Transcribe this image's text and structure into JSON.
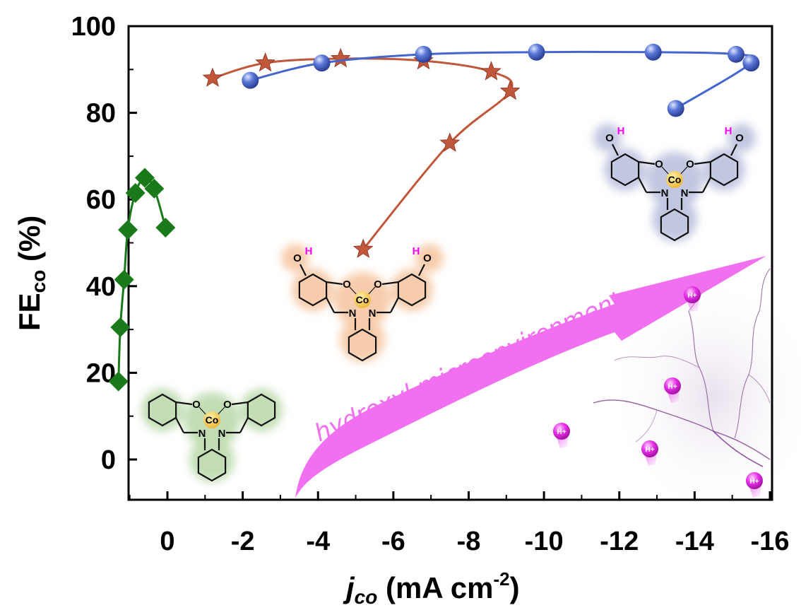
{
  "chart_data": {
    "type": "scatter",
    "title": "",
    "xlabel_main": "j",
    "xlabel_sub": "co",
    "xlabel_units": " (mA cm",
    "xlabel_exp": "-2",
    "xlabel_close": ")",
    "ylabel_main": "FE",
    "ylabel_sub": "co",
    "ylabel_units": " (%)",
    "xlim": [
      1,
      -16
    ],
    "ylim": [
      -10,
      100
    ],
    "x_ticks": [
      0,
      -2,
      -4,
      -6,
      -8,
      -10,
      -12,
      -14,
      -16
    ],
    "x_tick_labels": [
      "0",
      "-2",
      "-4",
      "-6",
      "-8",
      "-10",
      "-12",
      "-14",
      "-16"
    ],
    "y_ticks": [
      0,
      20,
      40,
      60,
      80,
      100
    ],
    "y_tick_labels": [
      "0",
      "20",
      "40",
      "60",
      "80",
      "100"
    ],
    "series": [
      {
        "marker": "diamond",
        "color": "#1a7a1a",
        "x": [
          0.05,
          0.35,
          0.6,
          0.85,
          1.05,
          1.15,
          1.25,
          1.3
        ],
        "y": [
          53.5,
          62.5,
          65,
          61.5,
          53,
          41.5,
          30.5,
          18
        ]
      },
      {
        "marker": "star",
        "color": "#c0563a",
        "x": [
          -1.2,
          -2.6,
          -4.6,
          -6.8,
          -8.6,
          -9.1,
          -7.5,
          -5.2
        ],
        "y": [
          88,
          91.5,
          92.5,
          92,
          89.5,
          85,
          73,
          48.5
        ]
      },
      {
        "marker": "sphere",
        "color": "#4466cc",
        "x": [
          -2.2,
          -4.1,
          -6.8,
          -9.8,
          -12.9,
          -15.1,
          -15.5,
          -13.5
        ],
        "y": [
          87.5,
          91.5,
          93.5,
          94,
          94,
          93.5,
          91.5,
          81
        ]
      }
    ],
    "annotation": "hydroxyl microenvironment"
  },
  "molecules": {
    "green": {
      "metal": "Co",
      "o1": "O",
      "o2": "O",
      "n1": "N",
      "n2": "N"
    },
    "orange": {
      "metal": "Co",
      "o1": "O",
      "o2": "O",
      "n1": "N",
      "n2": "N",
      "oh_o": "O",
      "oh_h": "H"
    },
    "blue": {
      "metal": "Co",
      "o1": "O",
      "o2": "O",
      "n1": "N",
      "n2": "N",
      "oh_o": "O",
      "oh_h": "H"
    }
  },
  "protons": {
    "label": "H+",
    "count": 5
  },
  "colors": {
    "axis": "#000000",
    "arrow": "#f070f0",
    "proton": "#e62ee6",
    "lightning": "#7a3a8a",
    "green_glow": "#b8d8a8",
    "orange_glow": "#f6c49e",
    "blue_glow": "#b8bedc"
  }
}
